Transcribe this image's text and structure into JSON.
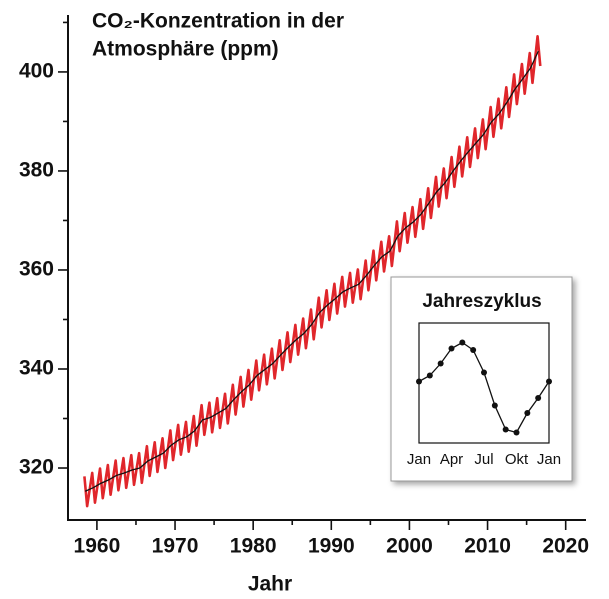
{
  "chart_data": [
    {
      "type": "line",
      "title": [
        "CO₂-Konzentration in der",
        "Atmosphäre (ppm)"
      ],
      "xlabel": "Jahr",
      "xlim": [
        1956.3,
        2022.6
      ],
      "xticks": [
        1960,
        1970,
        1980,
        1990,
        2000,
        2010,
        2020
      ],
      "xminorticks": [
        1965,
        1975,
        1985,
        1995,
        2005,
        2015
      ],
      "ylim": [
        309.5,
        411.5
      ],
      "yticks": [
        320,
        340,
        360,
        380,
        400
      ],
      "yminorticks": [
        330,
        350,
        370,
        390,
        410
      ],
      "series": [
        {
          "color": "#e0262b",
          "x": [
            1958.4,
            1958.75,
            1959.4,
            1959.75,
            1960.4,
            1960.75,
            1961.4,
            1961.75,
            1962.4,
            1962.75,
            1963.4,
            1963.75,
            1964.4,
            1964.75,
            1965.4,
            1965.75,
            1966.4,
            1966.75,
            1967.4,
            1967.75,
            1968.4,
            1968.75,
            1969.4,
            1969.75,
            1970.4,
            1970.75,
            1971.4,
            1971.75,
            1972.4,
            1972.75,
            1973.4,
            1973.75,
            1974.4,
            1974.75,
            1975.4,
            1975.75,
            1976.4,
            1976.75,
            1977.4,
            1977.75,
            1978.4,
            1978.75,
            1979.4,
            1979.75,
            1980.4,
            1980.75,
            1981.4,
            1981.75,
            1982.4,
            1982.75,
            1983.4,
            1983.75,
            1984.4,
            1984.75,
            1985.4,
            1985.75,
            1986.4,
            1986.75,
            1987.4,
            1987.75,
            1988.4,
            1988.75,
            1989.4,
            1989.75,
            1990.4,
            1990.75,
            1991.4,
            1991.75,
            1992.4,
            1992.75,
            1993.4,
            1993.75,
            1994.4,
            1994.75,
            1995.4,
            1995.75,
            1996.4,
            1996.75,
            1997.4,
            1997.75,
            1998.4,
            1998.75,
            1999.4,
            1999.75,
            2000.4,
            2000.75,
            2001.4,
            2001.75,
            2002.4,
            2002.75,
            2003.4,
            2003.75,
            2004.4,
            2004.75,
            2005.4,
            2005.75,
            2006.4,
            2006.75,
            2007.4,
            2007.75,
            2008.4,
            2008.75,
            2009.4,
            2009.75,
            2010.4,
            2010.75,
            2011.4,
            2011.75,
            2012.4,
            2012.75,
            2013.4,
            2013.75,
            2014.4,
            2014.75,
            2015.4,
            2015.75,
            2016.4,
            2016.75
          ],
          "values": [
            318.3,
            312.3,
            319.0,
            313.0,
            319.9,
            313.9,
            320.6,
            314.6,
            321.5,
            315.5,
            322.0,
            316.0,
            322.6,
            316.6,
            323.0,
            317.0,
            324.4,
            318.4,
            325.2,
            319.2,
            326.0,
            320.0,
            327.6,
            321.6,
            328.7,
            322.7,
            329.3,
            323.3,
            330.5,
            324.5,
            332.7,
            326.7,
            333.2,
            327.2,
            334.1,
            328.1,
            335.0,
            329.0,
            336.8,
            330.8,
            338.4,
            332.4,
            339.8,
            333.8,
            341.7,
            335.7,
            342.9,
            336.9,
            344.1,
            338.1,
            345.8,
            339.8,
            347.4,
            341.4,
            348.9,
            342.9,
            350.2,
            344.2,
            352.0,
            346.0,
            354.4,
            348.4,
            355.9,
            349.9,
            357.2,
            351.2,
            358.6,
            352.6,
            359.4,
            353.4,
            360.1,
            354.1,
            361.9,
            355.9,
            363.9,
            357.9,
            365.7,
            359.7,
            366.8,
            360.8,
            369.8,
            363.8,
            371.5,
            365.5,
            372.7,
            366.7,
            374.3,
            368.3,
            376.5,
            370.5,
            378.8,
            372.8,
            380.5,
            374.5,
            382.8,
            376.8,
            384.9,
            378.9,
            386.8,
            380.8,
            388.6,
            382.6,
            390.4,
            384.4,
            392.9,
            386.9,
            394.6,
            388.6,
            396.9,
            390.9,
            399.5,
            393.5,
            401.6,
            395.6,
            403.8,
            397.8,
            407.2,
            401.2
          ]
        },
        {
          "color": "#111111",
          "x": [
            1958.5,
            1959.5,
            1960.5,
            1961.5,
            1962.5,
            1963.5,
            1964.5,
            1965.5,
            1966.5,
            1967.5,
            1968.5,
            1969.5,
            1970.5,
            1971.5,
            1972.5,
            1973.5,
            1974.5,
            1975.5,
            1976.5,
            1977.5,
            1978.5,
            1979.5,
            1980.5,
            1981.5,
            1982.5,
            1983.5,
            1984.5,
            1985.5,
            1986.5,
            1987.5,
            1988.5,
            1989.5,
            1990.5,
            1991.5,
            1992.5,
            1993.5,
            1994.5,
            1995.5,
            1996.5,
            1997.5,
            1998.5,
            1999.5,
            2000.5,
            2001.5,
            2002.5,
            2003.5,
            2004.5,
            2005.5,
            2006.5,
            2007.5,
            2008.5,
            2009.5,
            2010.5,
            2011.5,
            2012.5,
            2013.5,
            2014.5,
            2015.5,
            2016.5
          ],
          "values": [
            315.3,
            316.0,
            316.9,
            317.6,
            318.5,
            319.0,
            319.6,
            320.0,
            321.4,
            322.2,
            323.0,
            324.6,
            325.7,
            326.3,
            327.5,
            329.7,
            330.2,
            331.1,
            332.0,
            333.8,
            335.4,
            336.8,
            338.7,
            339.9,
            341.1,
            342.8,
            344.4,
            345.9,
            347.2,
            349.0,
            351.4,
            352.9,
            354.2,
            355.6,
            356.4,
            357.1,
            358.9,
            360.9,
            362.7,
            363.8,
            366.8,
            368.5,
            369.7,
            371.3,
            373.5,
            375.8,
            377.5,
            379.8,
            381.9,
            383.8,
            385.6,
            387.4,
            389.9,
            391.6,
            393.9,
            396.5,
            398.6,
            400.8,
            404.2
          ]
        }
      ]
    },
    {
      "type": "inset",
      "title": "Jahreszyklus",
      "categories": [
        "Jan",
        null,
        null,
        "Apr",
        null,
        null,
        "Jul",
        null,
        null,
        "Okt",
        null,
        null,
        "Jan"
      ],
      "values": [
        0.1,
        0.5,
        1.3,
        2.3,
        2.7,
        2.2,
        0.7,
        -1.5,
        -3.1,
        -3.3,
        -2.0,
        -1.0,
        0.1
      ],
      "color": "#111111",
      "ylim": [
        -4,
        4
      ]
    }
  ]
}
